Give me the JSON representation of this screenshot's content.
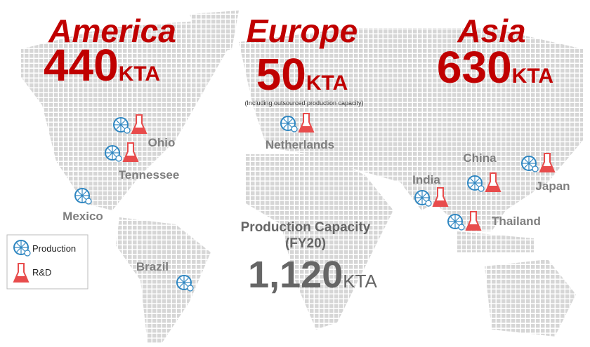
{
  "regions": [
    {
      "name": "America",
      "value": 440,
      "unit": "KTA"
    },
    {
      "name": "Europe",
      "value": 50,
      "unit": "KTA",
      "note": "(Including outsourced production capacity)"
    },
    {
      "name": "Asia",
      "value": 630,
      "unit": "KTA"
    }
  ],
  "total": {
    "title": "Production Capacity",
    "period": "(FY20)",
    "value": {
      "value": 1120,
      "label": "1,120"
    },
    "unit": "KTA"
  },
  "legend": {
    "production": "Production",
    "rnd": "R&D"
  },
  "locations": [
    {
      "name": "Ohio",
      "production": true,
      "rnd": true
    },
    {
      "name": "Tennessee",
      "production": true,
      "rnd": true
    },
    {
      "name": "Mexico",
      "production": true,
      "rnd": false
    },
    {
      "name": "Brazil",
      "production": true,
      "rnd": false
    },
    {
      "name": "Netherlands",
      "production": true,
      "rnd": true
    },
    {
      "name": "India",
      "production": true,
      "rnd": true
    },
    {
      "name": "China",
      "production": true,
      "rnd": true
    },
    {
      "name": "Thailand",
      "production": true,
      "rnd": true
    },
    {
      "name": "Japan",
      "production": true,
      "rnd": true
    }
  ]
}
